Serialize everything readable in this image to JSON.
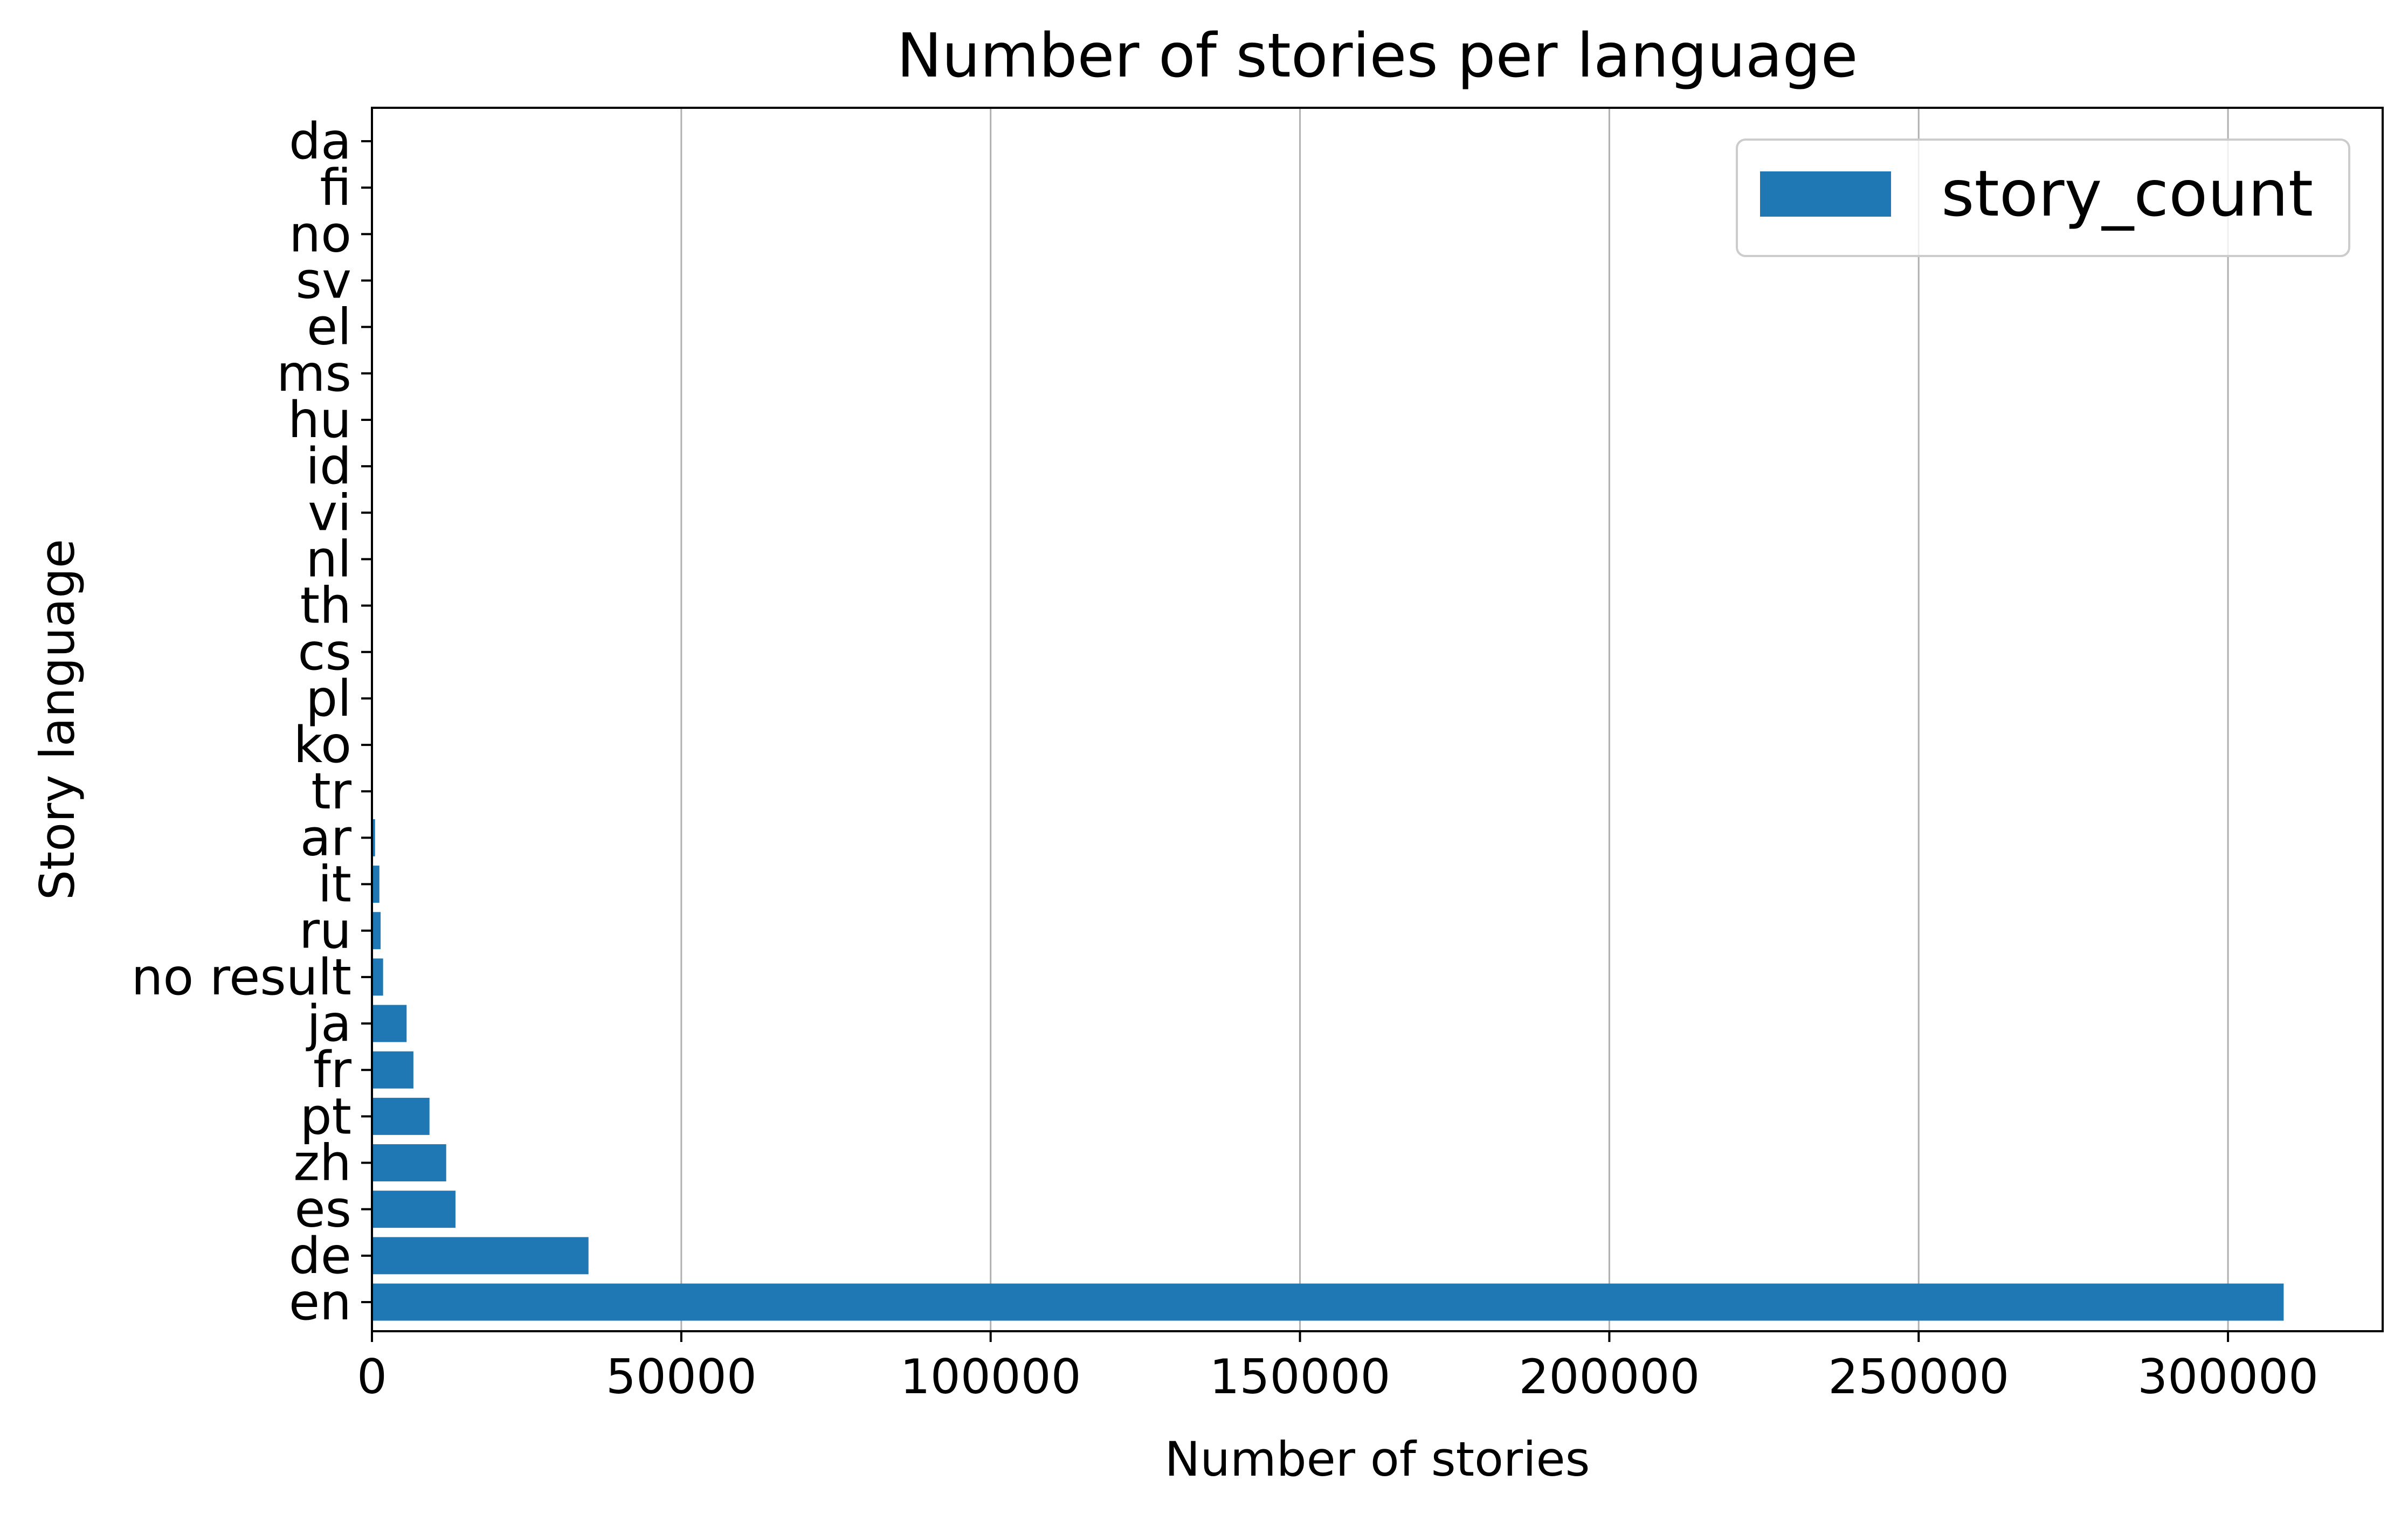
{
  "chart_data": {
    "type": "bar",
    "orientation": "horizontal",
    "title": "Number of stories per language",
    "xlabel": "Number of stories",
    "ylabel": "Story language",
    "xlim": [
      0,
      325000
    ],
    "xticks": [
      "0",
      "50000",
      "100000",
      "150000",
      "200000",
      "250000",
      "300000"
    ],
    "xtick_values": [
      0,
      50000,
      100000,
      150000,
      200000,
      250000,
      300000
    ],
    "grid": "x-axis vertical gridlines",
    "legend_position": "top-right",
    "bar_color": "#1f77b4",
    "categories": [
      "en",
      "de",
      "es",
      "zh",
      "pt",
      "fr",
      "ja",
      "no result",
      "ru",
      "it",
      "ar",
      "tr",
      "ko",
      "pl",
      "cs",
      "th",
      "nl",
      "vi",
      "id",
      "hu",
      "ms",
      "el",
      "sv",
      "no",
      "fi",
      "da"
    ],
    "series": [
      {
        "name": "story_count",
        "values": [
          309000,
          35000,
          13500,
          12000,
          9300,
          6700,
          5600,
          1800,
          1400,
          1200,
          500,
          150,
          120,
          100,
          90,
          80,
          70,
          60,
          50,
          40,
          35,
          30,
          25,
          20,
          15,
          10
        ]
      }
    ]
  }
}
